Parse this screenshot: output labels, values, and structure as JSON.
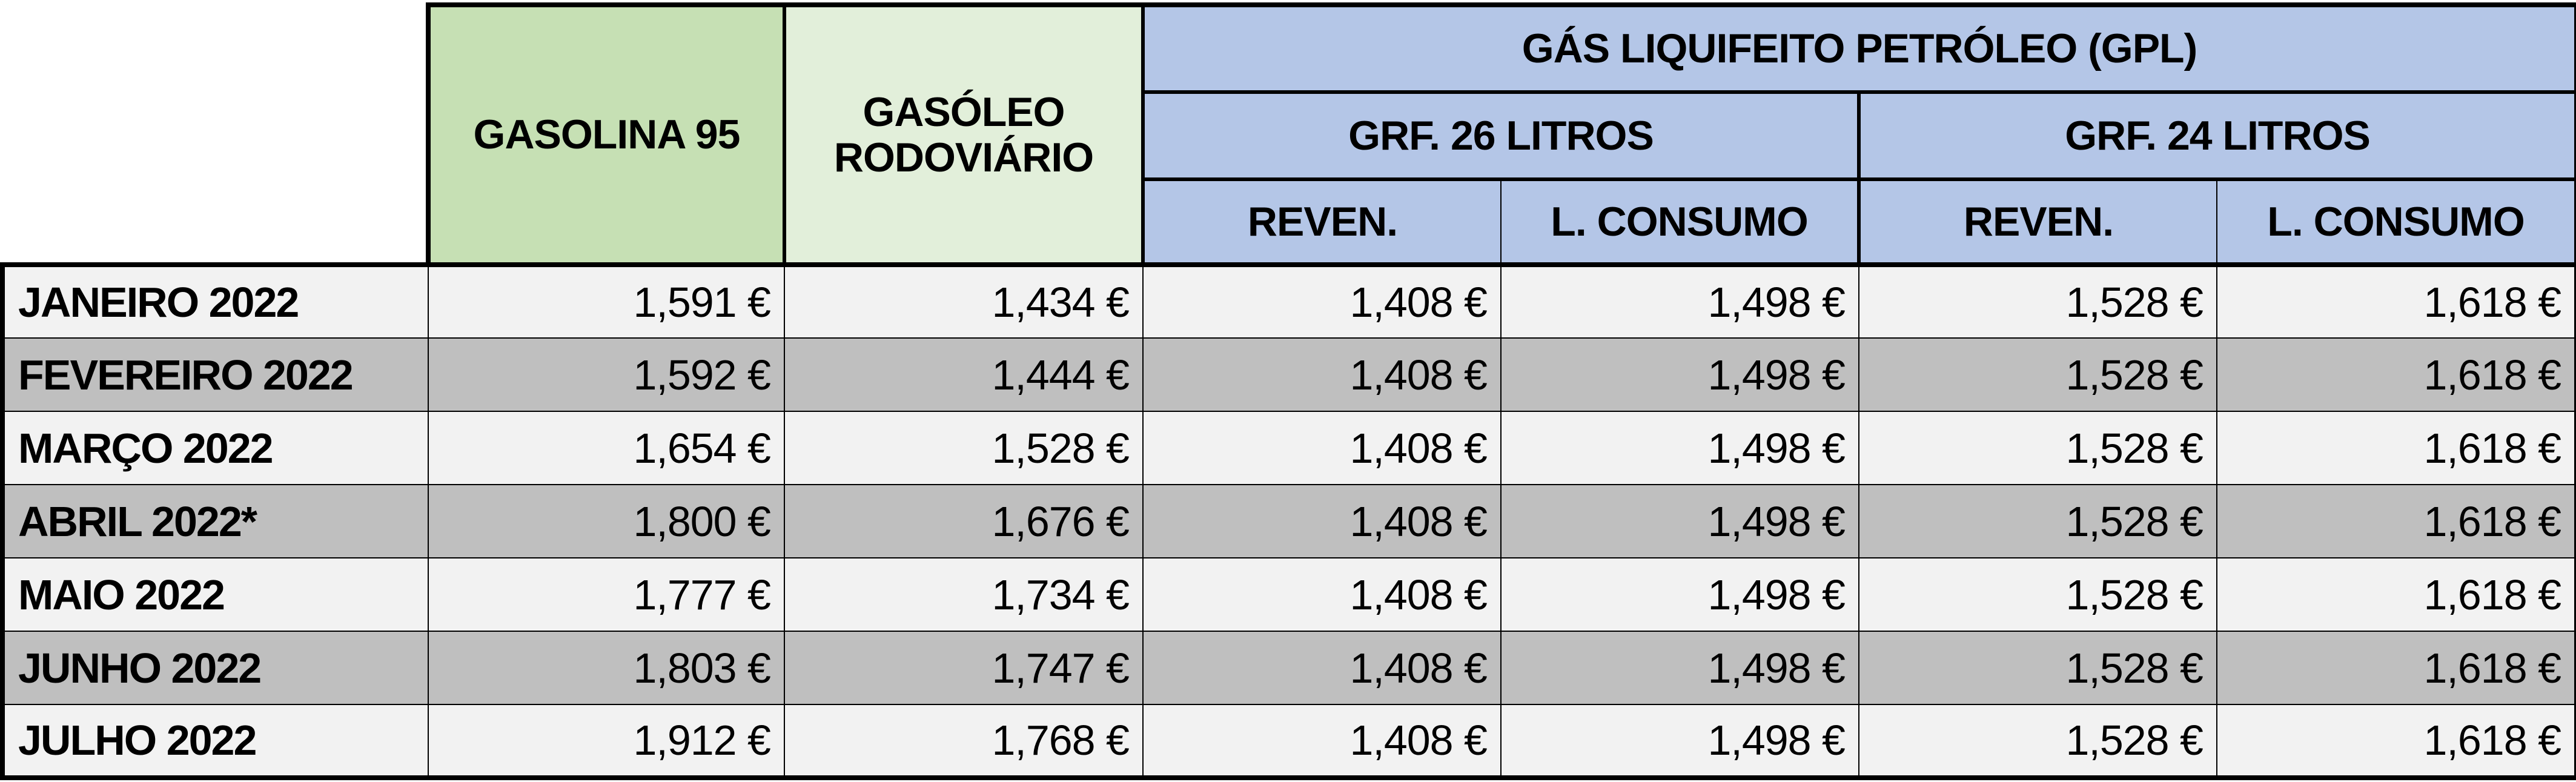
{
  "headers": {
    "gasolina": "GASOLINA 95",
    "gasoleo": "GASÓLEO RODOVIÁRIO",
    "gpl": "GÁS LIQUIFEITO PETRÓLEO (GPL)",
    "grf26": "GRF. 26 LITROS",
    "grf24": "GRF. 24 LITROS",
    "reven": "REVEN.",
    "consumo": "L. CONSUMO"
  },
  "colors": {
    "gasolina_header": "#c6e0b4",
    "gasoleo_header": "#e2efda",
    "gpl_header": "#b4c6e7",
    "row_light": "#f2f2f2",
    "row_dark": "#bfbfbf"
  },
  "rows": [
    {
      "month": "JANEIRO 2022",
      "gasolina": "1,591 €",
      "gasoleo": "1,434 €",
      "grf26_reven": "1,408 €",
      "grf26_consumo": "1,498 €",
      "grf24_reven": "1,528 €",
      "grf24_consumo": "1,618 €"
    },
    {
      "month": "FEVEREIRO 2022",
      "gasolina": "1,592 €",
      "gasoleo": "1,444 €",
      "grf26_reven": "1,408 €",
      "grf26_consumo": "1,498 €",
      "grf24_reven": "1,528 €",
      "grf24_consumo": "1,618 €"
    },
    {
      "month": "MARÇO 2022",
      "gasolina": "1,654 €",
      "gasoleo": "1,528 €",
      "grf26_reven": "1,408 €",
      "grf26_consumo": "1,498 €",
      "grf24_reven": "1,528 €",
      "grf24_consumo": "1,618 €"
    },
    {
      "month": "ABRIL 2022*",
      "gasolina": "1,800 €",
      "gasoleo": "1,676 €",
      "grf26_reven": "1,408 €",
      "grf26_consumo": "1,498 €",
      "grf24_reven": "1,528 €",
      "grf24_consumo": "1,618 €"
    },
    {
      "month": "MAIO 2022",
      "gasolina": "1,777 €",
      "gasoleo": "1,734 €",
      "grf26_reven": "1,408 €",
      "grf26_consumo": "1,498 €",
      "grf24_reven": "1,528 €",
      "grf24_consumo": "1,618 €"
    },
    {
      "month": "JUNHO 2022",
      "gasolina": "1,803 €",
      "gasoleo": "1,747 €",
      "grf26_reven": "1,408 €",
      "grf26_consumo": "1,498 €",
      "grf24_reven": "1,528 €",
      "grf24_consumo": "1,618 €"
    },
    {
      "month": "JULHO 2022",
      "gasolina": "1,912 €",
      "gasoleo": "1,768 €",
      "grf26_reven": "1,408 €",
      "grf26_consumo": "1,498 €",
      "grf24_reven": "1,528 €",
      "grf24_consumo": "1,618 €"
    }
  ]
}
